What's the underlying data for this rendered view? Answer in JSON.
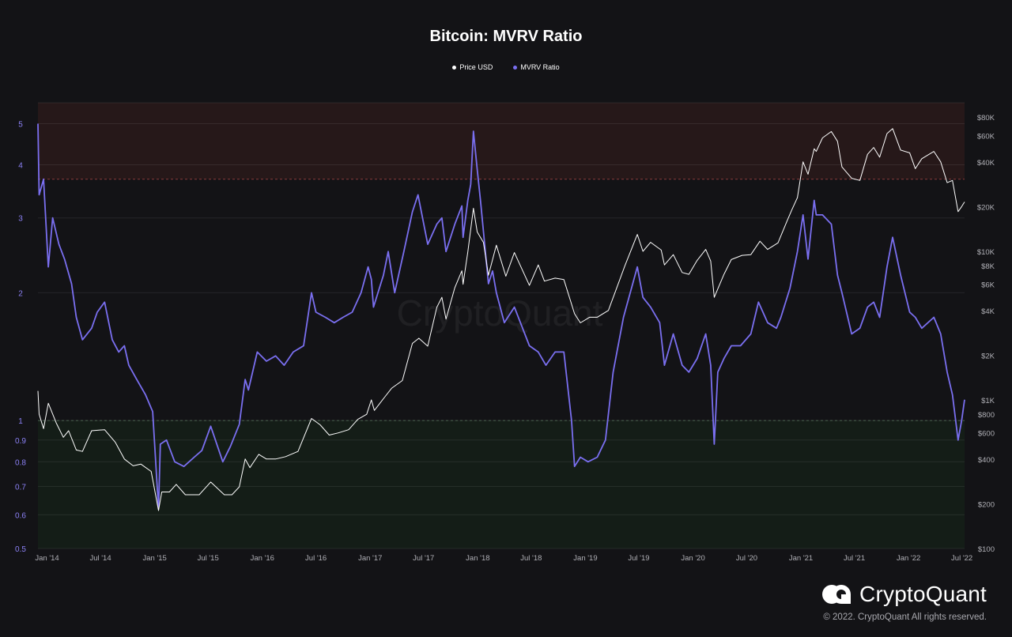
{
  "title": "Bitcoin: MVRV Ratio",
  "legend": [
    {
      "label": "Price USD",
      "color": "#ffffff"
    },
    {
      "label": "MVRV Ratio",
      "color": "#7a6ff0"
    }
  ],
  "watermark": "CryptoQuant",
  "logo_text": "CryptoQuant",
  "copyright": "© 2022. CryptoQuant All rights reserved.",
  "colors": {
    "background": "#131316",
    "mvrv": "#7a6ff0",
    "price": "#ffffff",
    "overvalued_zone": "#261819",
    "undervalued_zone": "#141d17",
    "threshold_line": "#8a3a3a"
  },
  "chart_data": {
    "type": "line",
    "title": "Bitcoin: MVRV Ratio",
    "x_ticks": [
      "Jan '14",
      "Jul '14",
      "Jan '15",
      "Jul '15",
      "Jan '16",
      "Jul '16",
      "Jan '17",
      "Jul '17",
      "Jan '18",
      "Jul '18",
      "Jan '19",
      "Jul '19",
      "Jan '20",
      "Jul '20",
      "Jan '21",
      "Jul '21",
      "Jan '22",
      "Jul '22"
    ],
    "x_range": [
      "2013-12-01",
      "2022-07-10"
    ],
    "y_left": {
      "label": "MVRV Ratio",
      "scale": "log",
      "range": [
        0.5,
        5.6
      ],
      "ticks": [
        "0.5",
        "0.6",
        "0.7",
        "0.8",
        "0.9",
        "1",
        "2",
        "3",
        "4",
        "5"
      ]
    },
    "y_right": {
      "label": "Price USD",
      "scale": "log",
      "range": [
        100,
        100000
      ],
      "ticks": [
        "$100",
        "$200",
        "$400",
        "$600",
        "$800",
        "$1K",
        "$2K",
        "$4K",
        "$6K",
        "$8K",
        "$10K",
        "$20K",
        "$40K",
        "$60K",
        "$80K"
      ]
    },
    "zones": [
      {
        "name": "overvalued",
        "from": 3.7,
        "to": 5.6
      },
      {
        "name": "undervalued",
        "from": 0.5,
        "to": 1.0
      }
    ],
    "series": [
      {
        "name": "MVRV Ratio",
        "axis": "left",
        "x": [
          "2013-12-01",
          "2013-12-05",
          "2013-12-20",
          "2014-01-05",
          "2014-01-20",
          "2014-02-10",
          "2014-03-01",
          "2014-03-25",
          "2014-04-10",
          "2014-05-01",
          "2014-06-01",
          "2014-06-20",
          "2014-07-15",
          "2014-08-10",
          "2014-09-01",
          "2014-09-20",
          "2014-10-05",
          "2014-11-01",
          "2014-12-01",
          "2014-12-25",
          "2015-01-14",
          "2015-01-20",
          "2015-02-10",
          "2015-03-10",
          "2015-04-10",
          "2015-05-15",
          "2015-06-10",
          "2015-07-10",
          "2015-08-20",
          "2015-09-15",
          "2015-10-15",
          "2015-11-04",
          "2015-11-15",
          "2015-12-15",
          "2016-01-15",
          "2016-02-15",
          "2016-03-15",
          "2016-04-15",
          "2016-05-20",
          "2016-06-16",
          "2016-07-01",
          "2016-08-02",
          "2016-09-01",
          "2016-10-01",
          "2016-11-01",
          "2016-12-01",
          "2016-12-25",
          "2017-01-05",
          "2017-01-12",
          "2017-02-15",
          "2017-03-03",
          "2017-03-25",
          "2017-04-25",
          "2017-05-24",
          "2017-06-12",
          "2017-07-15",
          "2017-08-15",
          "2017-09-01",
          "2017-09-15",
          "2017-10-15",
          "2017-11-08",
          "2017-11-12",
          "2017-11-28",
          "2017-12-08",
          "2017-12-17",
          "2017-12-30",
          "2018-01-10",
          "2018-02-06",
          "2018-02-20",
          "2018-03-05",
          "2018-04-01",
          "2018-05-05",
          "2018-06-25",
          "2018-07-25",
          "2018-08-20",
          "2018-09-20",
          "2018-10-20",
          "2018-11-15",
          "2018-11-25",
          "2018-12-15",
          "2019-01-10",
          "2019-02-10",
          "2019-03-10",
          "2019-04-05",
          "2019-05-10",
          "2019-06-26",
          "2019-07-15",
          "2019-08-10",
          "2019-09-10",
          "2019-09-26",
          "2019-10-26",
          "2019-11-25",
          "2019-12-18",
          "2020-01-15",
          "2020-02-13",
          "2020-03-01",
          "2020-03-13",
          "2020-03-25",
          "2020-04-15",
          "2020-05-10",
          "2020-06-10",
          "2020-07-15",
          "2020-08-10",
          "2020-09-10",
          "2020-10-10",
          "2020-10-25",
          "2020-11-25",
          "2020-12-20",
          "2021-01-08",
          "2021-01-25",
          "2021-02-15",
          "2021-02-22",
          "2021-03-15",
          "2021-04-14",
          "2021-05-05",
          "2021-05-20",
          "2021-06-22",
          "2021-07-20",
          "2021-08-15",
          "2021-09-05",
          "2021-09-25",
          "2021-10-20",
          "2021-11-08",
          "2021-12-05",
          "2022-01-05",
          "2022-01-24",
          "2022-02-15",
          "2022-03-28",
          "2022-04-20",
          "2022-05-12",
          "2022-05-30",
          "2022-06-18",
          "2022-06-30",
          "2022-07-10"
        ],
        "y": [
          5.0,
          3.4,
          3.7,
          2.3,
          3.0,
          2.6,
          2.4,
          2.1,
          1.75,
          1.55,
          1.65,
          1.8,
          1.9,
          1.55,
          1.45,
          1.5,
          1.35,
          1.25,
          1.15,
          1.05,
          0.62,
          0.88,
          0.9,
          0.8,
          0.78,
          0.82,
          0.85,
          0.97,
          0.8,
          0.87,
          0.98,
          1.25,
          1.18,
          1.45,
          1.38,
          1.42,
          1.35,
          1.45,
          1.5,
          2.0,
          1.8,
          1.75,
          1.7,
          1.75,
          1.8,
          2.0,
          2.3,
          2.15,
          1.85,
          2.2,
          2.5,
          2.0,
          2.5,
          3.1,
          3.4,
          2.6,
          2.9,
          3.0,
          2.5,
          2.9,
          3.2,
          2.7,
          3.3,
          3.6,
          4.8,
          3.9,
          3.3,
          2.1,
          2.25,
          2.0,
          1.7,
          1.85,
          1.5,
          1.45,
          1.35,
          1.45,
          1.45,
          1.0,
          0.78,
          0.82,
          0.8,
          0.82,
          0.9,
          1.3,
          1.75,
          2.3,
          1.95,
          1.85,
          1.7,
          1.35,
          1.6,
          1.35,
          1.3,
          1.4,
          1.6,
          1.35,
          0.88,
          1.3,
          1.4,
          1.5,
          1.5,
          1.6,
          1.9,
          1.7,
          1.65,
          1.75,
          2.05,
          2.5,
          3.05,
          2.4,
          3.3,
          3.05,
          3.05,
          2.9,
          2.2,
          2.0,
          1.6,
          1.65,
          1.85,
          1.9,
          1.75,
          2.3,
          2.7,
          2.2,
          1.8,
          1.75,
          1.65,
          1.75,
          1.6,
          1.3,
          1.15,
          0.9,
          1.0,
          1.12
        ]
      },
      {
        "name": "Price USD",
        "axis": "right",
        "x": [
          "2013-12-01",
          "2013-12-05",
          "2013-12-20",
          "2014-01-05",
          "2014-02-01",
          "2014-02-25",
          "2014-03-15",
          "2014-04-10",
          "2014-05-01",
          "2014-06-01",
          "2014-07-15",
          "2014-08-20",
          "2014-09-20",
          "2014-10-20",
          "2014-11-15",
          "2014-12-20",
          "2015-01-14",
          "2015-01-25",
          "2015-02-20",
          "2015-03-15",
          "2015-04-15",
          "2015-06-01",
          "2015-07-10",
          "2015-08-25",
          "2015-09-20",
          "2015-10-15",
          "2015-11-04",
          "2015-11-20",
          "2015-12-20",
          "2016-01-15",
          "2016-02-15",
          "2016-03-20",
          "2016-05-01",
          "2016-06-16",
          "2016-07-15",
          "2016-08-15",
          "2016-09-15",
          "2016-10-20",
          "2016-11-20",
          "2016-12-20",
          "2017-01-05",
          "2017-01-15",
          "2017-02-20",
          "2017-03-15",
          "2017-04-20",
          "2017-05-24",
          "2017-06-15",
          "2017-07-15",
          "2017-08-15",
          "2017-09-01",
          "2017-09-15",
          "2017-10-15",
          "2017-11-08",
          "2017-11-12",
          "2017-11-28",
          "2017-12-17",
          "2017-12-30",
          "2018-01-20",
          "2018-02-06",
          "2018-03-05",
          "2018-04-06",
          "2018-05-05",
          "2018-06-25",
          "2018-07-25",
          "2018-08-15",
          "2018-09-20",
          "2018-10-20",
          "2018-11-25",
          "2018-12-15",
          "2019-01-15",
          "2019-02-10",
          "2019-03-20",
          "2019-04-10",
          "2019-05-15",
          "2019-06-26",
          "2019-07-15",
          "2019-08-10",
          "2019-09-15",
          "2019-09-26",
          "2019-10-26",
          "2019-11-25",
          "2019-12-18",
          "2020-01-15",
          "2020-02-13",
          "2020-03-01",
          "2020-03-13",
          "2020-04-15",
          "2020-05-10",
          "2020-06-15",
          "2020-07-15",
          "2020-08-15",
          "2020-09-10",
          "2020-10-15",
          "2020-11-15",
          "2020-12-01",
          "2020-12-20",
          "2021-01-08",
          "2021-01-25",
          "2021-02-15",
          "2021-02-22",
          "2021-03-15",
          "2021-04-14",
          "2021-05-05",
          "2021-05-20",
          "2021-06-22",
          "2021-07-20",
          "2021-08-15",
          "2021-09-05",
          "2021-09-25",
          "2021-10-20",
          "2021-11-08",
          "2021-12-05",
          "2022-01-05",
          "2022-01-24",
          "2022-02-15",
          "2022-03-28",
          "2022-04-20",
          "2022-05-12",
          "2022-05-30",
          "2022-06-18",
          "2022-06-30",
          "2022-07-10"
        ],
        "y": [
          1150,
          800,
          640,
          950,
          700,
          560,
          620,
          460,
          450,
          620,
          630,
          520,
          400,
          360,
          370,
          330,
          180,
          240,
          240,
          270,
          230,
          230,
          280,
          230,
          230,
          260,
          400,
          350,
          430,
          400,
          400,
          415,
          450,
          750,
          680,
          580,
          600,
          630,
          740,
          800,
          1000,
          850,
          1050,
          1200,
          1350,
          2400,
          2600,
          2300,
          4200,
          4900,
          3500,
          5700,
          7400,
          6000,
          9900,
          19500,
          13500,
          11500,
          6900,
          11000,
          6800,
          9800,
          5900,
          8100,
          6300,
          6600,
          6450,
          3800,
          3300,
          3600,
          3600,
          4000,
          5200,
          8000,
          13000,
          10000,
          11500,
          10200,
          8100,
          9500,
          7200,
          7000,
          8700,
          10300,
          8600,
          4900,
          7000,
          8800,
          9400,
          9500,
          11700,
          10300,
          11400,
          16000,
          19000,
          23000,
          40000,
          33000,
          49000,
          47000,
          58000,
          64000,
          55000,
          37000,
          31000,
          30000,
          45000,
          50000,
          43000,
          62000,
          67000,
          48000,
          46000,
          36000,
          42000,
          47000,
          40000,
          29000,
          30000,
          18500,
          20000,
          21500
        ]
      }
    ]
  }
}
